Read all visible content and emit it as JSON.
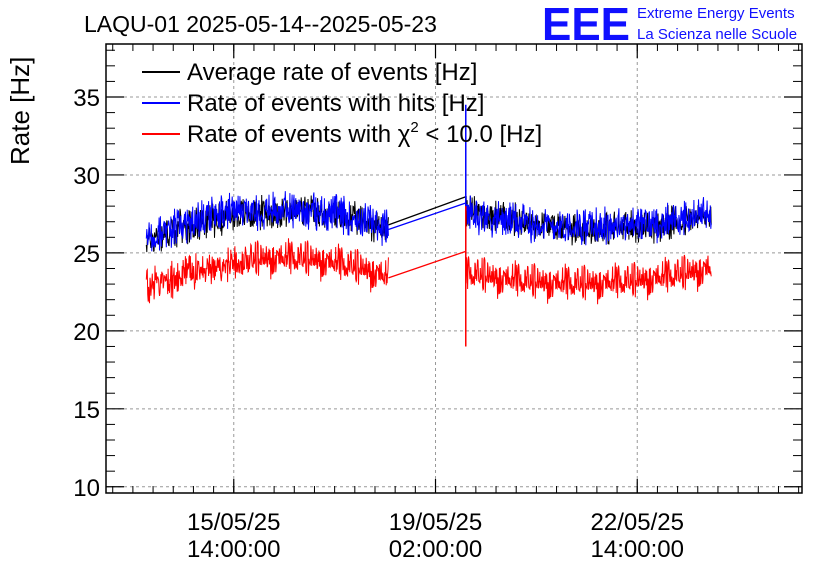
{
  "chart_data": {
    "type": "line",
    "title": "LAQU-01 2025-05-14--2025-05-23",
    "ylabel": "Rate [Hz]",
    "xlabel": "",
    "ylim": [
      9.6,
      38.4
    ],
    "yticks": [
      10,
      15,
      20,
      25,
      30,
      35
    ],
    "ytick_labels": [
      "10",
      "15",
      "20",
      "25",
      "30",
      "35"
    ],
    "xlim_hours": [
      0,
      207
    ],
    "xticks": [
      {
        "hours": 38,
        "date": "15/05/25",
        "time": "14:00:00"
      },
      {
        "hours": 98,
        "date": "19/05/25",
        "time": "02:00:00"
      },
      {
        "hours": 158,
        "date": "22/05/25",
        "time": "14:00:00"
      }
    ],
    "grid": true,
    "legend_position": "top-left",
    "series": [
      {
        "name": "Average rate of events [Hz]",
        "color": "#000000",
        "segments": [
          {
            "t0": 12,
            "t1": 84,
            "start": 25.8,
            "peak": 27.6,
            "end": 26.5
          },
          {
            "t0": 107,
            "t1": 180,
            "start": 27.8,
            "peak": 26.6,
            "end": 27.4
          }
        ],
        "gap_bridge": {
          "t0": 84,
          "v0": 26.8,
          "t1": 107,
          "v1": 28.6
        },
        "noise": 0.9
      },
      {
        "name": "Rate of events with hits [Hz]",
        "color": "#0000ff",
        "segments": [
          {
            "t0": 12,
            "t1": 84,
            "start": 25.9,
            "peak": 27.8,
            "end": 26.6
          },
          {
            "t0": 107,
            "t1": 180,
            "start": 27.6,
            "peak": 26.7,
            "end": 27.5
          }
        ],
        "gap_bridge": {
          "t0": 84,
          "v0": 26.5,
          "t1": 107,
          "v1": 28.2
        },
        "spike": {
          "t": 107,
          "high": 34.5,
          "low": 24.5
        },
        "noise": 1.0
      },
      {
        "name": "Rate of events with χ² < 10.0 [Hz]",
        "color": "#ff0000",
        "segments": [
          {
            "t0": 12,
            "t1": 84,
            "start": 22.6,
            "peak": 24.6,
            "end": 23.4
          },
          {
            "t0": 107,
            "t1": 180,
            "start": 23.7,
            "peak": 23.0,
            "end": 24.0
          }
        ],
        "gap_bridge": {
          "t0": 84,
          "v0": 23.4,
          "t1": 107,
          "v1": 25.1
        },
        "spike": {
          "t": 107,
          "high": 28.0,
          "low": 19.0
        },
        "noise": 1.0
      }
    ],
    "legend": [
      {
        "label": "Average rate of events [Hz]",
        "color": "#000000"
      },
      {
        "label": "Rate of events with hits [Hz]",
        "color": "#0000ff"
      },
      {
        "label_prefix": "Rate of events with ",
        "label_chi": "χ",
        "label_sup": "2",
        "label_suffix": " < 10.0 [Hz]",
        "color": "#ff0000"
      }
    ]
  },
  "logo": {
    "big": "EEE",
    "line1": "Extreme Energy Events",
    "line2": "La Scienza nelle Scuole",
    "color": "#1010ff"
  }
}
